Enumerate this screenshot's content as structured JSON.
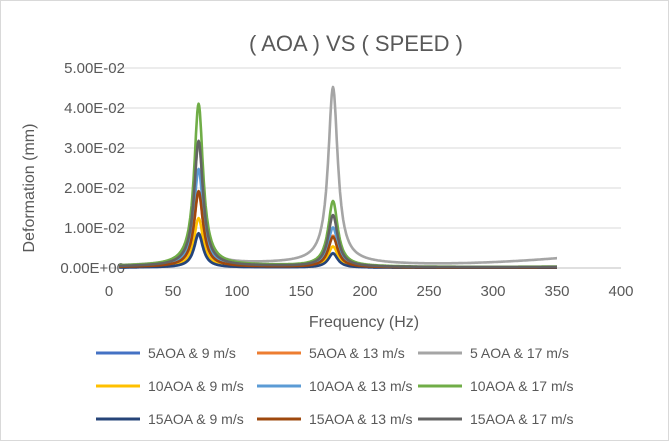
{
  "chart_data": {
    "type": "line",
    "title": "( AOA ) VS ( SPEED )",
    "xlabel": "Frequency (Hz)",
    "ylabel": "Deformation (mm)",
    "xlim": [
      0,
      400
    ],
    "ylim": [
      0,
      0.05
    ],
    "x_ticks": [
      0,
      50,
      100,
      150,
      200,
      250,
      300,
      350,
      400
    ],
    "x_tick_labels": [
      "0",
      "50",
      "100",
      "150",
      "200",
      "250",
      "300",
      "350",
      "400"
    ],
    "y_ticks": [
      0,
      0.01,
      0.02,
      0.03,
      0.04,
      0.05
    ],
    "y_tick_labels": [
      "0.00E+00",
      "1.00E-02",
      "2.00E-02",
      "3.00E-02",
      "4.00E-02",
      "5.00E-02"
    ],
    "grid": "horizontal",
    "legend_position": "bottom",
    "series": [
      {
        "name": "5AOA & 9 m/s",
        "color": "#4472c4",
        "peak1": 0.0082,
        "peak2": 0.0036,
        "tail": 0.0001
      },
      {
        "name": "5AOA & 13 m/s",
        "color": "#ed7d31",
        "peak1": 0.0185,
        "peak2": 0.0078,
        "tail": 0.0002
      },
      {
        "name": "5 AOA & 17 m/s",
        "color": "#a5a5a5",
        "peak1": 0.0305,
        "peak2": 0.0435,
        "tail": 0.0036
      },
      {
        "name": "10AOA & 9 m/s",
        "color": "#ffc000",
        "peak1": 0.0122,
        "peak2": 0.0052,
        "tail": 0.0002
      },
      {
        "name": "10AOA & 13 m/s",
        "color": "#5b9bd5",
        "peak1": 0.0242,
        "peak2": 0.0098,
        "tail": 0.0003
      },
      {
        "name": "10AOA & 17 m/s",
        "color": "#70ad47",
        "peak1": 0.0402,
        "peak2": 0.0162,
        "tail": 0.0004
      },
      {
        "name": "15AOA & 9 m/s",
        "color": "#264478",
        "peak1": 0.0085,
        "peak2": 0.0035,
        "tail": 0.0001
      },
      {
        "name": "15AOA & 13 m/s",
        "color": "#9e480e",
        "peak1": 0.0188,
        "peak2": 0.0075,
        "tail": 0.0002
      },
      {
        "name": "15AOA & 17 m/s",
        "color": "#636363",
        "peak1": 0.0311,
        "peak2": 0.0128,
        "tail": 0.0003
      }
    ],
    "frequency_range": [
      8,
      350
    ],
    "mode_frequencies": [
      70,
      175
    ]
  }
}
